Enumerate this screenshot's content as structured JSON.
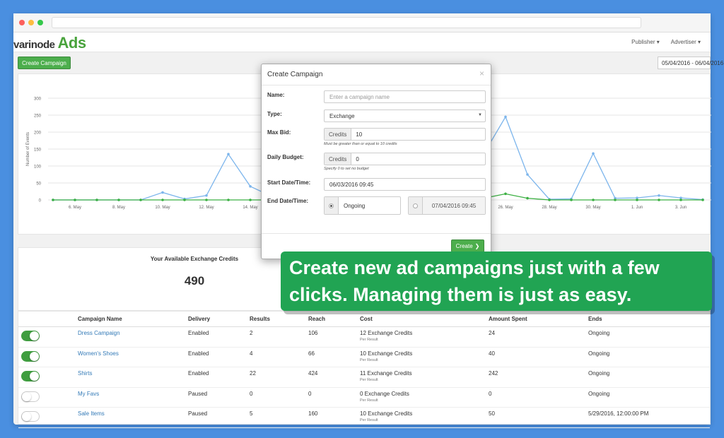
{
  "brand": {
    "logo_text": "varinode",
    "logo_ads": "Ads"
  },
  "nav": {
    "publisher": "Publisher ▾",
    "advertiser": "Advertiser ▾"
  },
  "toolbar": {
    "create_campaign": "Create Campaign",
    "date_range": "05/04/2016 - 06/04/2016"
  },
  "chart_data": {
    "type": "line",
    "ylabel": "Number of Events",
    "ylim": [
      0,
      300
    ],
    "yticks": [
      0,
      50,
      100,
      150,
      200,
      250,
      300
    ],
    "xticks_left": [
      "6. May",
      "8. May",
      "10. May",
      "12. May",
      "14. May"
    ],
    "xticks_right": [
      "26. May",
      "28. May",
      "30. May",
      "1. Jun",
      "3. Jun"
    ],
    "series": [
      {
        "name": "",
        "color": "#7cb5ec",
        "values_left": [
          0,
          0,
          0,
          0,
          0,
          22,
          3,
          13,
          135,
          40,
          10
        ],
        "values_right": [
          135,
          245,
          75,
          2,
          3,
          137,
          5,
          6,
          13,
          6,
          1
        ]
      },
      {
        "name": "",
        "color": "#3cb043",
        "values_left": [
          0,
          0,
          0,
          0,
          0,
          0,
          0,
          0,
          0,
          0,
          0
        ],
        "values_right": [
          5,
          18,
          5,
          0,
          0,
          0,
          0,
          0,
          0,
          0,
          0
        ]
      }
    ]
  },
  "credits": {
    "title": "Your Available Exchange Credits",
    "value": "490"
  },
  "table": {
    "headers": [
      "Campaign Name",
      "Delivery",
      "Results",
      "Reach",
      "Cost",
      "Amount Spent",
      "Ends"
    ],
    "per_result": "Per Result",
    "rows": [
      {
        "name": "Dress Campaign",
        "delivery": "Enabled",
        "results": "2",
        "reach": "106",
        "cost": "12 Exchange Credits",
        "spent": "24",
        "ends": "Ongoing"
      },
      {
        "name": "Women's Shoes",
        "delivery": "Enabled",
        "results": "4",
        "reach": "66",
        "cost": "10 Exchange Credits",
        "spent": "40",
        "ends": "Ongoing"
      },
      {
        "name": "Shirts",
        "delivery": "Enabled",
        "results": "22",
        "reach": "424",
        "cost": "11 Exchange Credits",
        "spent": "242",
        "ends": "Ongoing"
      },
      {
        "name": "My Favs",
        "delivery": "Paused",
        "results": "0",
        "reach": "0",
        "cost": "0 Exchange Credits",
        "spent": "0",
        "ends": "Ongoing"
      },
      {
        "name": "Sale Items",
        "delivery": "Paused",
        "results": "5",
        "reach": "160",
        "cost": "10 Exchange Credits",
        "spent": "50",
        "ends": "5/29/2016, 12:00:00 PM"
      }
    ]
  },
  "modal": {
    "title": "Create Campaign",
    "close": "×",
    "name_label": "Name:",
    "name_placeholder": "Enter a campaign name",
    "type_label": "Type:",
    "type_value": "Exchange",
    "maxbid_label": "Max Bid:",
    "maxbid_prefix": "Credits",
    "maxbid_value": "10",
    "maxbid_hint": "Must be greater than or equal to 10 credits",
    "budget_label": "Daily Budget:",
    "budget_prefix": "Credits",
    "budget_value": "0",
    "budget_hint": "Specify 0 to set no budget",
    "start_label": "Start Date/Time:",
    "start_value": "06/03/2016 09:45",
    "end_label": "End Date/Time:",
    "end_ongoing": "Ongoing",
    "end_date": "07/04/2016 09:45",
    "create_button": "Create"
  },
  "callout": {
    "line1": "Create new ad campaigns just with a few",
    "line2": "clicks. Managing them is just as easy."
  }
}
